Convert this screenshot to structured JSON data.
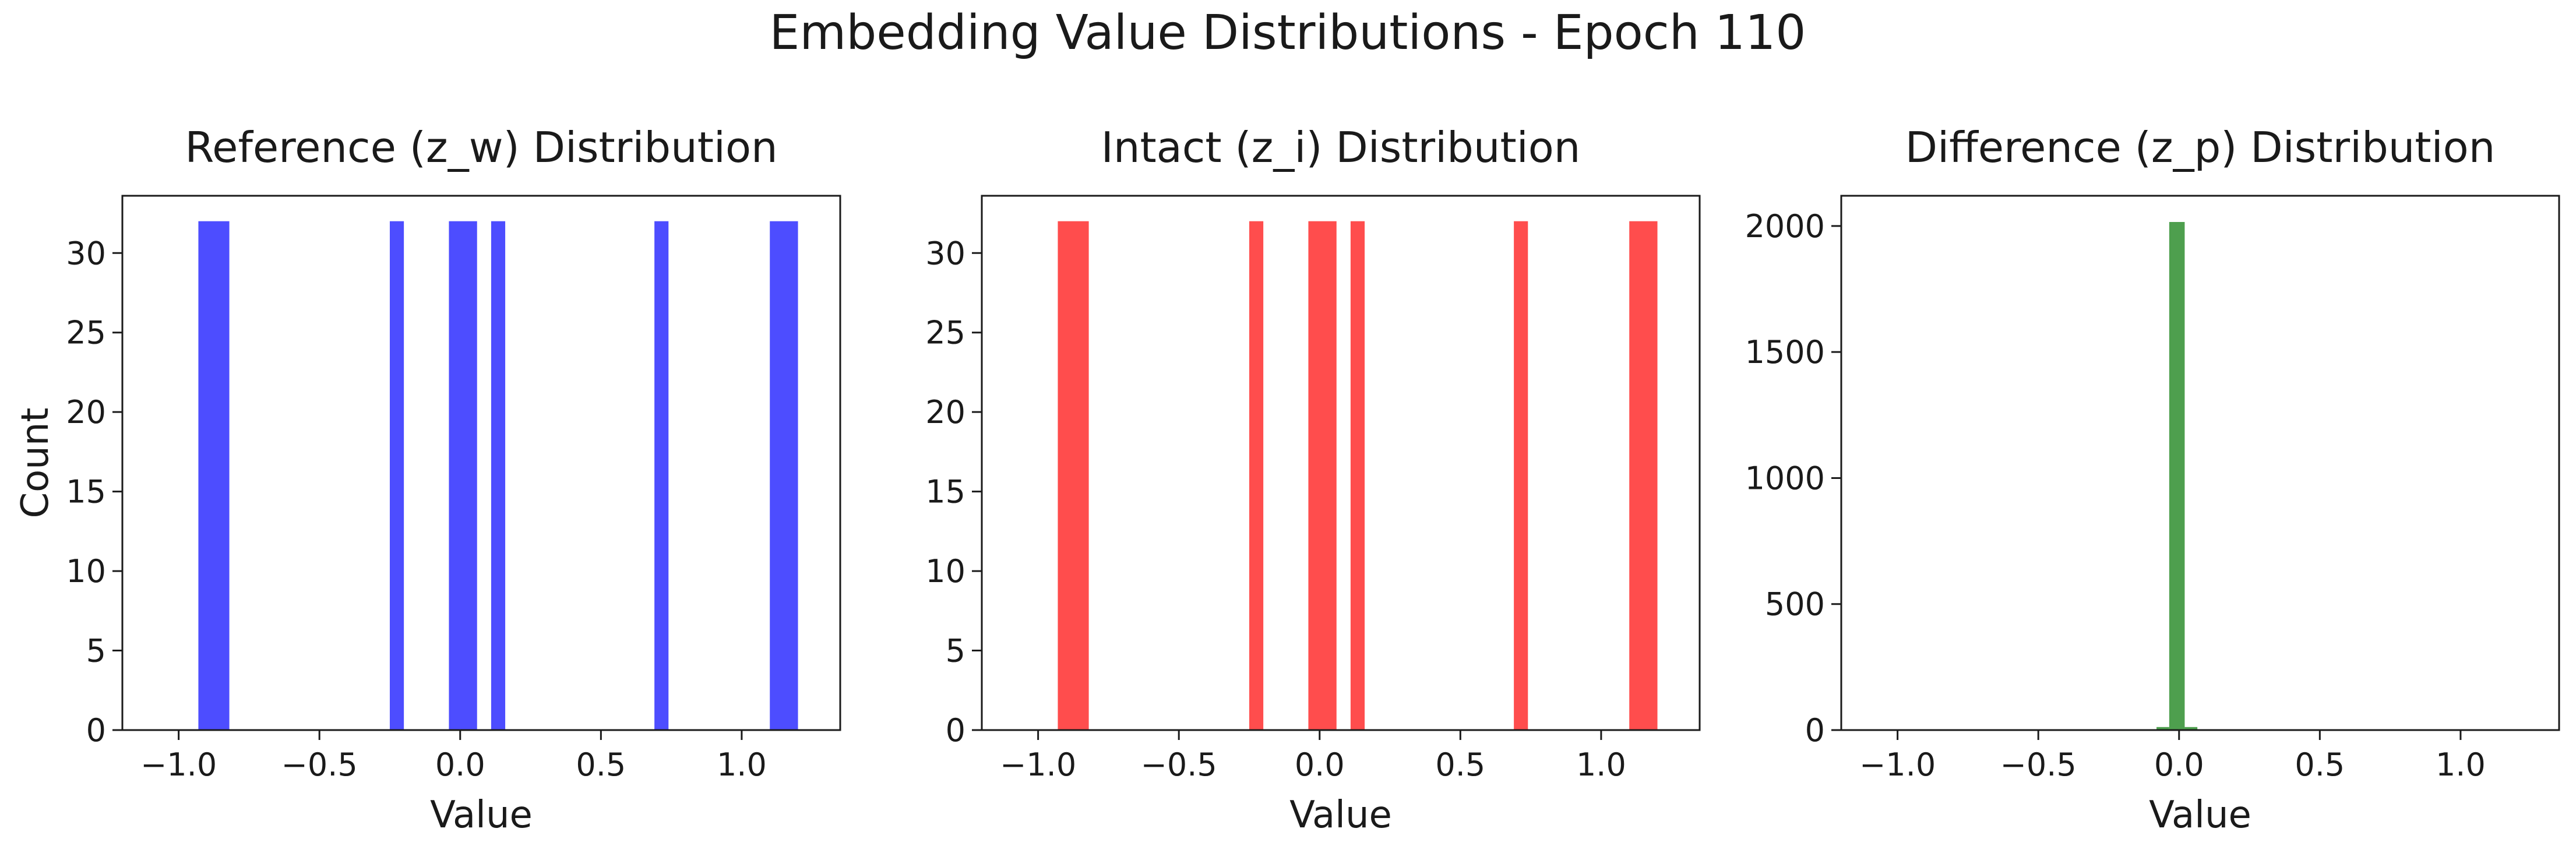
{
  "suptitle": "Embedding Value Distributions - Epoch 110",
  "chart_data": [
    {
      "type": "bar",
      "title": "Reference (z_w) Distribution",
      "xlabel": "Value",
      "ylabel": "Count",
      "color": "#4d4dff",
      "xlim": [
        -1.2,
        1.35
      ],
      "ylim": [
        0,
        33.6
      ],
      "xticks": [
        -1.0,
        -0.5,
        0.0,
        0.5,
        1.0
      ],
      "xtick_labels": [
        "−1.0",
        "−0.5",
        "0.0",
        "0.5",
        "1.0"
      ],
      "yticks": [
        0,
        5,
        10,
        15,
        20,
        25,
        30
      ],
      "ytick_labels": [
        "0",
        "5",
        "10",
        "15",
        "20",
        "25",
        "30"
      ],
      "bins": [
        {
          "x0": -0.93,
          "x1": -0.82,
          "count": 32
        },
        {
          "x0": -0.25,
          "x1": -0.2,
          "count": 32
        },
        {
          "x0": -0.04,
          "x1": 0.06,
          "count": 32
        },
        {
          "x0": 0.11,
          "x1": 0.16,
          "count": 32
        },
        {
          "x0": 0.69,
          "x1": 0.74,
          "count": 32
        },
        {
          "x0": 1.1,
          "x1": 1.2,
          "count": 32
        }
      ]
    },
    {
      "type": "bar",
      "title": "Intact (z_i) Distribution",
      "xlabel": "Value",
      "ylabel": "",
      "color": "#ff4d4d",
      "xlim": [
        -1.2,
        1.35
      ],
      "ylim": [
        0,
        33.6
      ],
      "xticks": [
        -1.0,
        -0.5,
        0.0,
        0.5,
        1.0
      ],
      "xtick_labels": [
        "−1.0",
        "−0.5",
        "0.0",
        "0.5",
        "1.0"
      ],
      "yticks": [
        0,
        5,
        10,
        15,
        20,
        25,
        30
      ],
      "ytick_labels": [
        "0",
        "5",
        "10",
        "15",
        "20",
        "25",
        "30"
      ],
      "bins": [
        {
          "x0": -0.93,
          "x1": -0.82,
          "count": 32
        },
        {
          "x0": -0.25,
          "x1": -0.2,
          "count": 32
        },
        {
          "x0": -0.04,
          "x1": 0.06,
          "count": 32
        },
        {
          "x0": 0.11,
          "x1": 0.16,
          "count": 32
        },
        {
          "x0": 0.69,
          "x1": 0.74,
          "count": 32
        },
        {
          "x0": 1.1,
          "x1": 1.2,
          "count": 32
        }
      ]
    },
    {
      "type": "bar",
      "title": "Difference (z_p) Distribution",
      "xlabel": "Value",
      "ylabel": "",
      "color": "#4e9f4e",
      "xlim": [
        -1.2,
        1.35
      ],
      "ylim": [
        0,
        2120
      ],
      "xticks": [
        -1.0,
        -0.5,
        0.0,
        0.5,
        1.0
      ],
      "xtick_labels": [
        "−1.0",
        "−0.5",
        "0.0",
        "0.5",
        "1.0"
      ],
      "yticks": [
        0,
        500,
        1000,
        1500,
        2000
      ],
      "ytick_labels": [
        "0",
        "500",
        "1000",
        "1500",
        "2000"
      ],
      "bins": [
        {
          "x0": -0.08,
          "x1": -0.035,
          "count": 12
        },
        {
          "x0": -0.035,
          "x1": 0.02,
          "count": 2016
        },
        {
          "x0": 0.02,
          "x1": 0.065,
          "count": 12
        }
      ]
    }
  ]
}
